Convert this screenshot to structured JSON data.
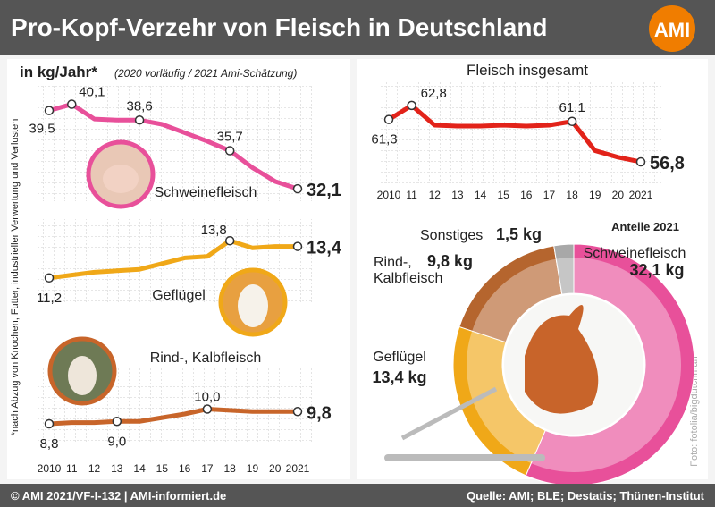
{
  "header": {
    "title": "Pro-Kopf-Verzehr von Fleisch in Deutschland",
    "logo": "AMI"
  },
  "notes": {
    "unit": "in kg/Jahr*",
    "remark": "(2020 vorläufig / 2021 Ami-Schätzung)",
    "footnote": "*nach Abzug von Knochen, Futter, industrieller Verwertung und Verlusten",
    "photo_credit": "Foto: fotolia/bigdutchman"
  },
  "footer": {
    "left": "© AMI 2021/VF-I-132 | AMI-informiert.de",
    "right": "Quelle: AMI; BLE; Destatis; Thünen-Institut"
  },
  "chart_data": [
    {
      "type": "line",
      "name": "Schweinefleisch",
      "color": "#e8509a",
      "x": [
        2010,
        2011,
        2012,
        2013,
        2014,
        2015,
        2016,
        2017,
        2018,
        2019,
        2020,
        2021
      ],
      "values": [
        39.5,
        40.1,
        38.7,
        38.6,
        38.6,
        38.2,
        37.4,
        36.6,
        35.7,
        34.1,
        32.8,
        32.1
      ],
      "value_labels": [
        "39,5",
        "40,1",
        null,
        null,
        "38,6",
        null,
        null,
        null,
        "35,7",
        null,
        null,
        "32,1"
      ],
      "xlim": [
        2010,
        2021
      ],
      "ylim": [
        30.5,
        41.5
      ]
    },
    {
      "type": "line",
      "name": "Geflügel",
      "color": "#f0a818",
      "x": [
        2010,
        2011,
        2012,
        2013,
        2014,
        2015,
        2016,
        2017,
        2018,
        2019,
        2020,
        2021
      ],
      "values": [
        11.2,
        11.4,
        11.6,
        11.7,
        11.8,
        12.2,
        12.6,
        12.7,
        13.8,
        13.3,
        13.4,
        13.4
      ],
      "value_labels": [
        "11,2",
        null,
        null,
        null,
        null,
        null,
        null,
        null,
        "13,8",
        null,
        null,
        "13,4"
      ],
      "xlim": [
        2010,
        2021
      ],
      "ylim": [
        10,
        15
      ]
    },
    {
      "type": "line",
      "name": "Rind-, Kalbfleisch",
      "color": "#c8652a",
      "x": [
        2010,
        2011,
        2012,
        2013,
        2014,
        2015,
        2016,
        2017,
        2018,
        2019,
        2020,
        2021
      ],
      "values": [
        8.8,
        8.9,
        8.9,
        9.0,
        9.0,
        9.3,
        9.6,
        10.0,
        9.9,
        9.8,
        9.8,
        9.8
      ],
      "value_labels": [
        "8,8",
        null,
        null,
        "9,0",
        null,
        null,
        null,
        "10,0",
        null,
        null,
        null,
        "9,8"
      ],
      "xlim": [
        2010,
        2021
      ],
      "ylim": [
        8,
        12
      ],
      "xticks": [
        2010,
        {
          "value": 2011,
          "label": "11"
        },
        {
          "value": 2012,
          "label": "12"
        },
        {
          "value": 2013,
          "label": "13"
        },
        {
          "value": 2014,
          "label": "14"
        },
        {
          "value": 2015,
          "label": "15"
        },
        {
          "value": 2016,
          "label": "16"
        },
        {
          "value": 2017,
          "label": "17"
        },
        {
          "value": 2018,
          "label": "18"
        },
        {
          "value": 2019,
          "label": "19"
        },
        {
          "value": 2020,
          "label": "20"
        },
        2021
      ]
    },
    {
      "type": "line",
      "title": "Fleisch insgesamt",
      "color": "#e2231a",
      "x": [
        2010,
        2011,
        2012,
        2013,
        2014,
        2015,
        2016,
        2017,
        2018,
        2019,
        2020,
        2021
      ],
      "values": [
        61.3,
        62.8,
        60.7,
        60.6,
        60.6,
        60.7,
        60.6,
        60.7,
        61.1,
        58.0,
        57.3,
        56.8
      ],
      "value_labels": [
        "61,3",
        "62,8",
        null,
        null,
        null,
        null,
        null,
        null,
        "61,1",
        null,
        null,
        "56,8"
      ],
      "xlim": [
        2010,
        2021
      ],
      "ylim": [
        55,
        64.5
      ],
      "xticks": [
        2010,
        {
          "value": 2011,
          "label": "11"
        },
        {
          "value": 2012,
          "label": "12"
        },
        {
          "value": 2013,
          "label": "13"
        },
        {
          "value": 2014,
          "label": "14"
        },
        {
          "value": 2015,
          "label": "15"
        },
        {
          "value": 2016,
          "label": "16"
        },
        {
          "value": 2017,
          "label": "17"
        },
        {
          "value": 2018,
          "label": "18"
        },
        {
          "value": 2019,
          "label": "19"
        },
        {
          "value": 2020,
          "label": "20"
        },
        2021
      ]
    },
    {
      "type": "pie",
      "title": "Anteile 2021",
      "categories": [
        "Schweinefleisch",
        "Geflügel",
        "Rind-, Kalbfleisch",
        "Sonstiges"
      ],
      "values": [
        32.1,
        13.4,
        9.8,
        1.5
      ],
      "value_labels": [
        "32,1 kg",
        "13,4 kg",
        "9,8 kg",
        "1,5 kg"
      ],
      "colors": [
        "#e8509a",
        "#f0a818",
        "#b5652e",
        "#a8a8a8"
      ]
    }
  ]
}
